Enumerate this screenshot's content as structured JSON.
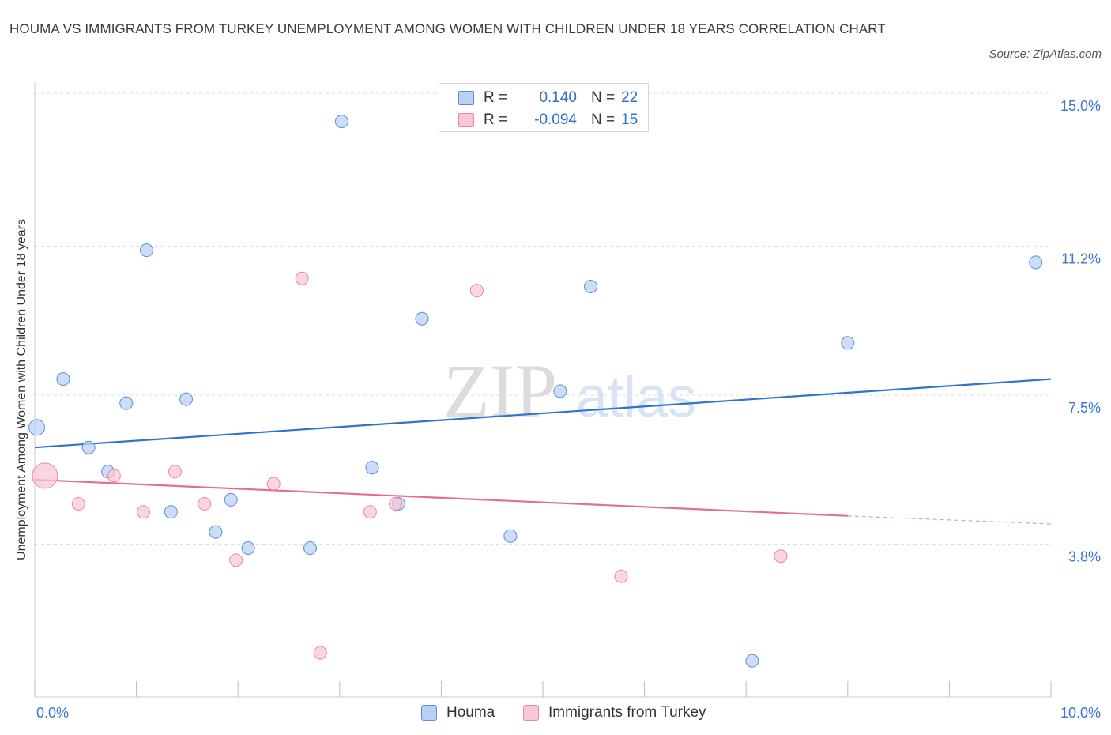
{
  "header": {
    "title": "HOUMA VS IMMIGRANTS FROM TURKEY UNEMPLOYMENT AMONG WOMEN WITH CHILDREN UNDER 18 YEARS CORRELATION CHART",
    "source": "Source: ZipAtlas.com"
  },
  "watermark": {
    "zip": "ZIP",
    "atlas": "atlas"
  },
  "legend": {
    "rows": [
      {
        "r_label": "R =",
        "r_value": "0.140",
        "n_label": "N =",
        "n_value": "22",
        "color": "#5b8fd6",
        "fill": "#b9d1f5"
      },
      {
        "r_label": "R =",
        "r_value": "-0.094",
        "n_label": "N =",
        "n_value": "15",
        "color": "#e887a6",
        "fill": "#f9c7d6"
      }
    ]
  },
  "bottom_legend": [
    {
      "label": "Houma",
      "color": "#5b8fd6",
      "fill": "#b9d1f5"
    },
    {
      "label": "Immigrants from Turkey",
      "color": "#e887a6",
      "fill": "#f9c7d6"
    }
  ],
  "chart_data": {
    "type": "scatter",
    "title": "HOUMA VS IMMIGRANTS FROM TURKEY UNEMPLOYMENT AMONG WOMEN WITH CHILDREN UNDER 18 YEARS CORRELATION CHART",
    "xlabel": "",
    "ylabel": "Unemployment Among Women with Children Under 18 years",
    "xlim": [
      0,
      10
    ],
    "ylim": [
      0,
      15
    ],
    "x_tick_labels": [
      "0.0%",
      "10.0%"
    ],
    "y_tick_values": [
      3.8,
      7.5,
      11.2,
      15.0
    ],
    "y_tick_labels": [
      "3.8%",
      "7.5%",
      "11.2%",
      "15.0%"
    ],
    "grid": true,
    "legend_position": "top-center",
    "series": [
      {
        "name": "Houma",
        "color": "#5b8fd6",
        "fill": "#b9d1f5",
        "trend": {
          "x": [
            0,
            10
          ],
          "y": [
            6.2,
            7.9
          ]
        },
        "points": [
          {
            "x": 0.02,
            "y": 6.7,
            "size": "medium"
          },
          {
            "x": 0.28,
            "y": 7.9
          },
          {
            "x": 0.53,
            "y": 6.2
          },
          {
            "x": 0.72,
            "y": 5.6
          },
          {
            "x": 0.9,
            "y": 7.3
          },
          {
            "x": 1.1,
            "y": 11.1
          },
          {
            "x": 1.34,
            "y": 4.6
          },
          {
            "x": 1.49,
            "y": 7.4
          },
          {
            "x": 1.78,
            "y": 4.1
          },
          {
            "x": 1.93,
            "y": 4.9
          },
          {
            "x": 2.1,
            "y": 3.7
          },
          {
            "x": 2.71,
            "y": 3.7
          },
          {
            "x": 3.02,
            "y": 14.3
          },
          {
            "x": 3.32,
            "y": 5.7
          },
          {
            "x": 3.58,
            "y": 4.8
          },
          {
            "x": 3.81,
            "y": 9.4
          },
          {
            "x": 4.68,
            "y": 4.0
          },
          {
            "x": 5.17,
            "y": 7.6
          },
          {
            "x": 5.47,
            "y": 10.2
          },
          {
            "x": 7.06,
            "y": 0.9
          },
          {
            "x": 8.0,
            "y": 8.8
          },
          {
            "x": 9.85,
            "y": 10.8
          }
        ]
      },
      {
        "name": "Immigrants from Turkey",
        "color": "#e887a6",
        "fill": "#f9c7d6",
        "trend": {
          "x": [
            0,
            8.0
          ],
          "y": [
            5.4,
            4.5
          ],
          "dashed_to": [
            10,
            4.3
          ]
        },
        "points": [
          {
            "x": 0.1,
            "y": 5.5,
            "size": "large"
          },
          {
            "x": 0.43,
            "y": 4.8
          },
          {
            "x": 0.78,
            "y": 5.5
          },
          {
            "x": 1.07,
            "y": 4.6
          },
          {
            "x": 1.38,
            "y": 5.6
          },
          {
            "x": 1.67,
            "y": 4.8
          },
          {
            "x": 1.98,
            "y": 3.4
          },
          {
            "x": 2.35,
            "y": 5.3
          },
          {
            "x": 2.63,
            "y": 10.4
          },
          {
            "x": 2.81,
            "y": 1.1
          },
          {
            "x": 3.3,
            "y": 4.6
          },
          {
            "x": 3.55,
            "y": 4.8
          },
          {
            "x": 4.35,
            "y": 10.1
          },
          {
            "x": 5.77,
            "y": 3.0
          },
          {
            "x": 7.34,
            "y": 3.5
          }
        ]
      }
    ]
  }
}
